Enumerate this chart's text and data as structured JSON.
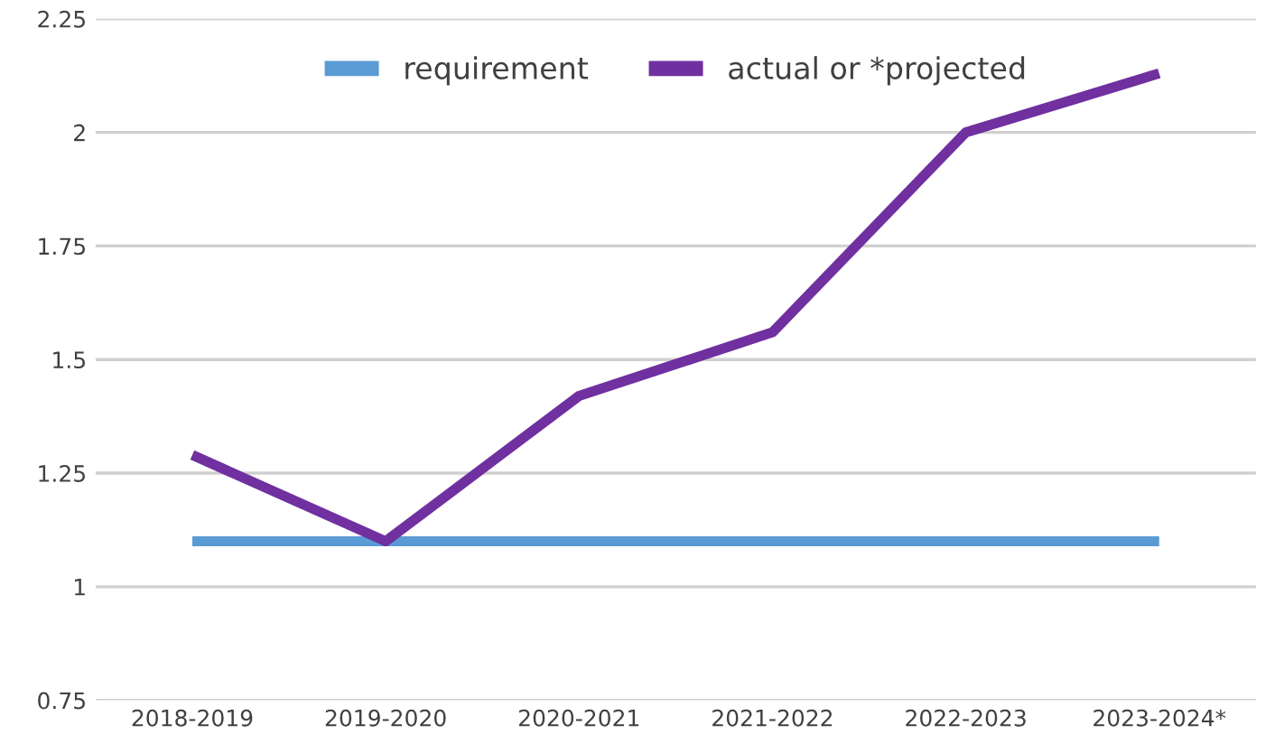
{
  "chart_data": {
    "type": "line",
    "categories": [
      "2018-2019",
      "2019-2020",
      "2020-2021",
      "2021-2022",
      "2022-2023",
      "2023-2024*"
    ],
    "series": [
      {
        "name": "requirement",
        "color": "#5b9bd5",
        "values": [
          1.1,
          1.1,
          1.1,
          1.1,
          1.1,
          1.1
        ]
      },
      {
        "name": "actual or *projected",
        "color": "#7030a0",
        "values": [
          1.29,
          1.1,
          1.42,
          1.56,
          2.0,
          2.13
        ]
      }
    ],
    "ylim": [
      0.75,
      2.25
    ],
    "yticks": [
      0.75,
      1,
      1.25,
      1.5,
      1.75,
      2,
      2.25
    ],
    "grid": "y",
    "legend": "top",
    "marker": "none",
    "line_style": "solid"
  }
}
